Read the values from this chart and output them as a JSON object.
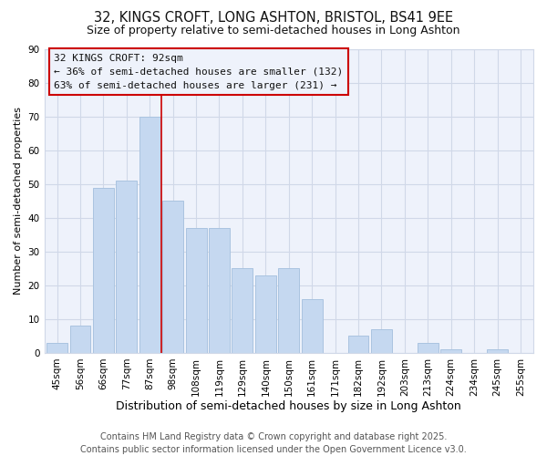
{
  "title": "32, KINGS CROFT, LONG ASHTON, BRISTOL, BS41 9EE",
  "subtitle": "Size of property relative to semi-detached houses in Long Ashton",
  "xlabel": "Distribution of semi-detached houses by size in Long Ashton",
  "ylabel": "Number of semi-detached properties",
  "categories": [
    "45sqm",
    "56sqm",
    "66sqm",
    "77sqm",
    "87sqm",
    "98sqm",
    "108sqm",
    "119sqm",
    "129sqm",
    "140sqm",
    "150sqm",
    "161sqm",
    "171sqm",
    "182sqm",
    "192sqm",
    "203sqm",
    "213sqm",
    "224sqm",
    "234sqm",
    "245sqm",
    "255sqm"
  ],
  "values": [
    3,
    8,
    49,
    51,
    70,
    45,
    37,
    37,
    25,
    23,
    25,
    16,
    0,
    5,
    7,
    0,
    3,
    1,
    0,
    1,
    0
  ],
  "bar_color": "#c5d8f0",
  "bar_edge_color": "#aac4e0",
  "background_color": "#ffffff",
  "plot_bg_color": "#eef2fb",
  "grid_color": "#d0d8e8",
  "vline_x": 4.5,
  "vline_color": "#cc0000",
  "annotation_title": "32 KINGS CROFT: 92sqm",
  "annotation_line1": "← 36% of semi-detached houses are smaller (132)",
  "annotation_line2": "63% of semi-detached houses are larger (231) →",
  "annotation_box_color": "#cc0000",
  "annotation_bg_color": "#eef2fb",
  "ylim": [
    0,
    90
  ],
  "yticks": [
    0,
    10,
    20,
    30,
    40,
    50,
    60,
    70,
    80,
    90
  ],
  "footer_line1": "Contains HM Land Registry data © Crown copyright and database right 2025.",
  "footer_line2": "Contains public sector information licensed under the Open Government Licence v3.0.",
  "title_fontsize": 10.5,
  "subtitle_fontsize": 9,
  "xlabel_fontsize": 9,
  "ylabel_fontsize": 8,
  "tick_fontsize": 7.5,
  "annotation_fontsize": 8,
  "footer_fontsize": 7
}
